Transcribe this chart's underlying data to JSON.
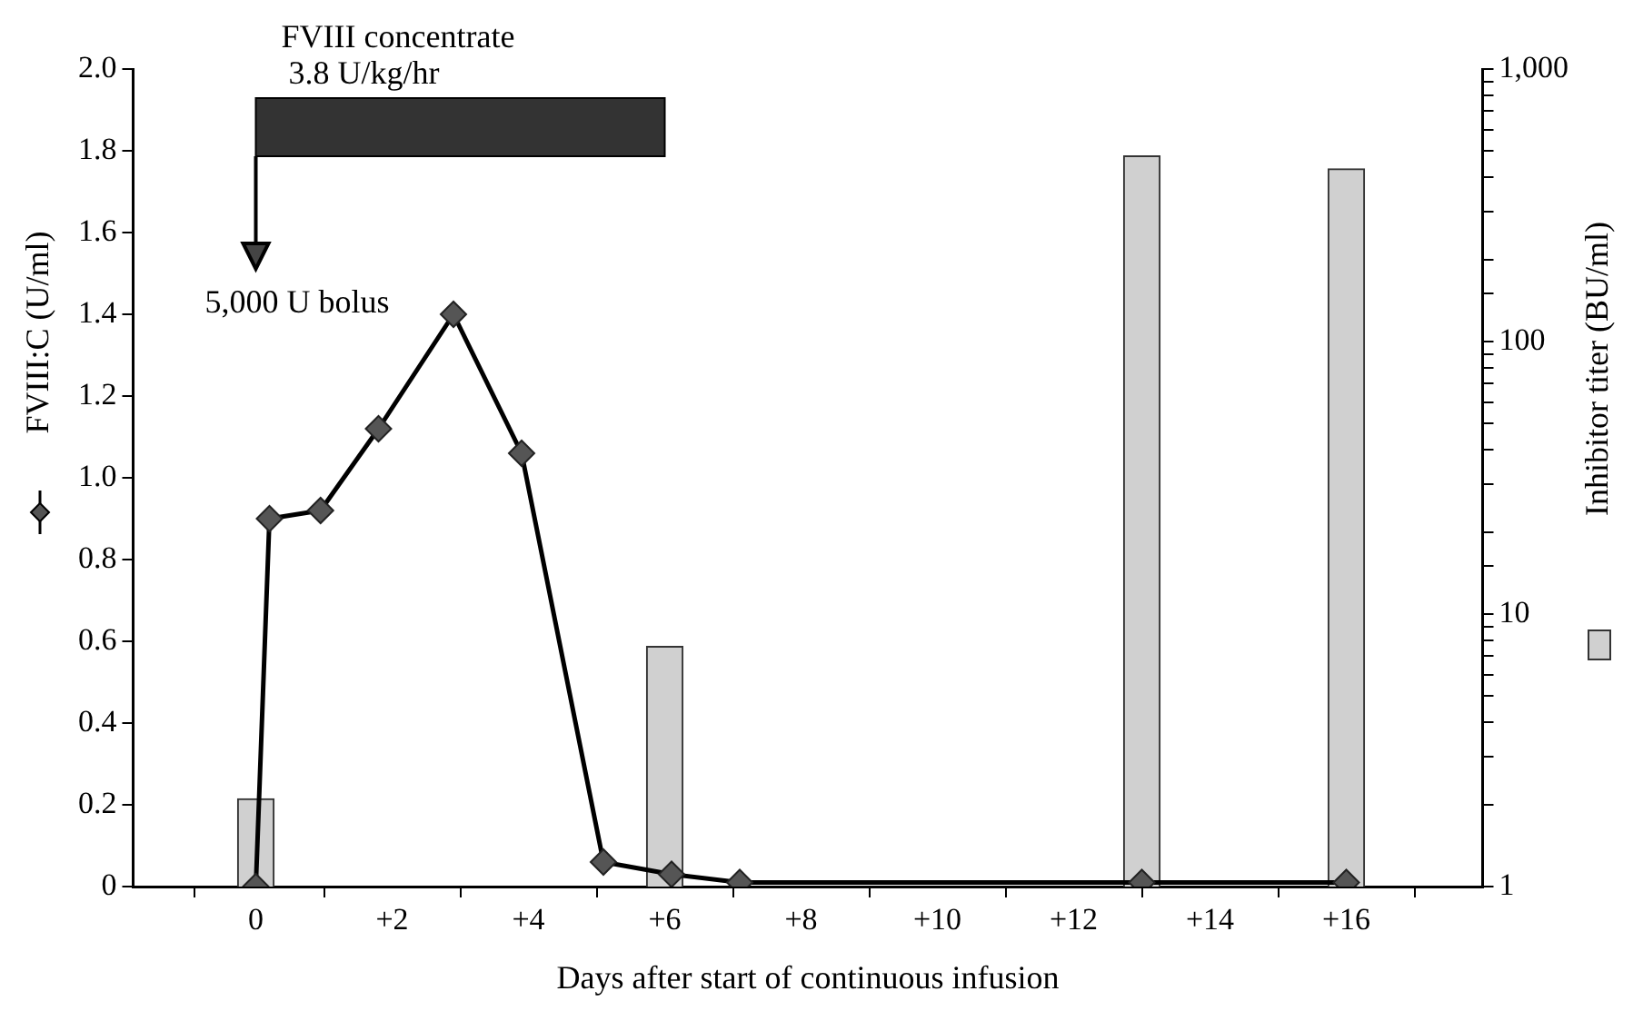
{
  "chart_data": {
    "type": "line",
    "title": "FVIII concentrate",
    "xlabel": "Days after start of continuous infusion",
    "ylabel": "FVIII:C (U/ml)",
    "y2label": "Inhibitor titer (BU/ml)",
    "xlim": [
      -1.8,
      18
    ],
    "xticks": [
      {
        "value": 0,
        "label": "0"
      },
      {
        "value": 1,
        "label": null
      },
      {
        "value": 2,
        "label": "+2"
      },
      {
        "value": 3,
        "label": null
      },
      {
        "value": 4,
        "label": "+4"
      },
      {
        "value": 5,
        "label": null
      },
      {
        "value": 6,
        "label": "+6"
      },
      {
        "value": 7,
        "label": null
      },
      {
        "value": 8,
        "label": "+8"
      },
      {
        "value": 9,
        "label": null
      },
      {
        "value": 10,
        "label": "+10"
      },
      {
        "value": 11,
        "label": null
      },
      {
        "value": 12,
        "label": "+12"
      },
      {
        "value": 13,
        "label": null
      },
      {
        "value": 14,
        "label": "+14"
      },
      {
        "value": 15,
        "label": null
      },
      {
        "value": 16,
        "label": "+16"
      },
      {
        "value": 17,
        "label": null
      }
    ],
    "ylim": [
      0,
      2
    ],
    "yticks": [
      0,
      0.2,
      0.4,
      0.6,
      0.8,
      {
        "value": 1,
        "label": "1.0"
      },
      1.2,
      1.4,
      1.6,
      1.8,
      {
        "value": 2,
        "label": "2.0"
      }
    ],
    "y2lim": [
      1,
      1000
    ],
    "y2ticks": [
      1,
      10,
      100,
      {
        "value": 1000,
        "label": "1,000"
      }
    ],
    "log": "y2",
    "marker": "diamond",
    "series": [
      {
        "color": "#555555",
        "x": [
          0,
          0.2,
          0.95,
          1.8,
          2.9,
          3.9,
          5.1,
          6.1,
          7.1,
          13,
          16
        ],
        "values": [
          0,
          0.9,
          0.92,
          1.12,
          1.4,
          1.06,
          0.06,
          0.03,
          0.01,
          0.01,
          0.01
        ]
      },
      {
        "type": "bar",
        "axis": "y2",
        "color": "#d0d0d0",
        "x": [
          0,
          6,
          13,
          16
        ],
        "values": [
          2.1,
          7.6,
          480,
          430
        ]
      }
    ],
    "bands": [
      {
        "axis": "x",
        "from": 0,
        "to": 6,
        "label": "3.8 U/kg/hr",
        "color": "#333333"
      }
    ],
    "annotations": [
      "5,000 U bolus"
    ]
  }
}
